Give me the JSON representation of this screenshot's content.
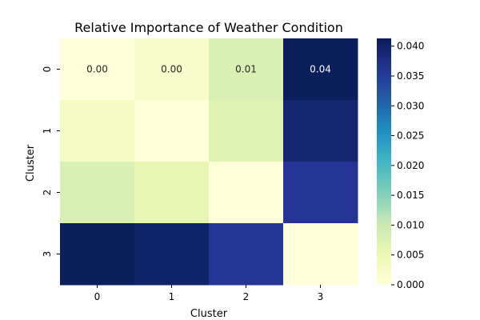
{
  "chart_data": {
    "type": "heatmap",
    "title": "Relative Importance of Weather Condition",
    "xlabel": "Cluster",
    "ylabel": "Cluster",
    "x_categories": [
      "0",
      "1",
      "2",
      "3"
    ],
    "y_categories": [
      "0",
      "1",
      "2",
      "3"
    ],
    "values": [
      [
        0.0,
        0.002,
        0.008,
        0.041
      ],
      [
        0.003,
        0.0,
        0.007,
        0.039
      ],
      [
        0.008,
        0.006,
        0.0,
        0.036
      ],
      [
        0.041,
        0.04,
        0.036,
        0.0
      ]
    ],
    "annotations": [
      [
        "0.00",
        "0.00",
        "0.01",
        "0.04"
      ],
      [
        "",
        "",
        "",
        ""
      ],
      [
        "",
        "",
        "",
        ""
      ],
      [
        "",
        "",
        "",
        ""
      ]
    ],
    "colormap": "YlGnBu",
    "colorbar": {
      "range": [
        0.0,
        0.0413
      ],
      "ticks": [
        0.0,
        0.005,
        0.01,
        0.015,
        0.02,
        0.025,
        0.03,
        0.035,
        0.04
      ],
      "tick_labels": [
        "0.000",
        "0.005",
        "0.010",
        "0.015",
        "0.020",
        "0.025",
        "0.030",
        "0.035",
        "0.040"
      ]
    }
  }
}
